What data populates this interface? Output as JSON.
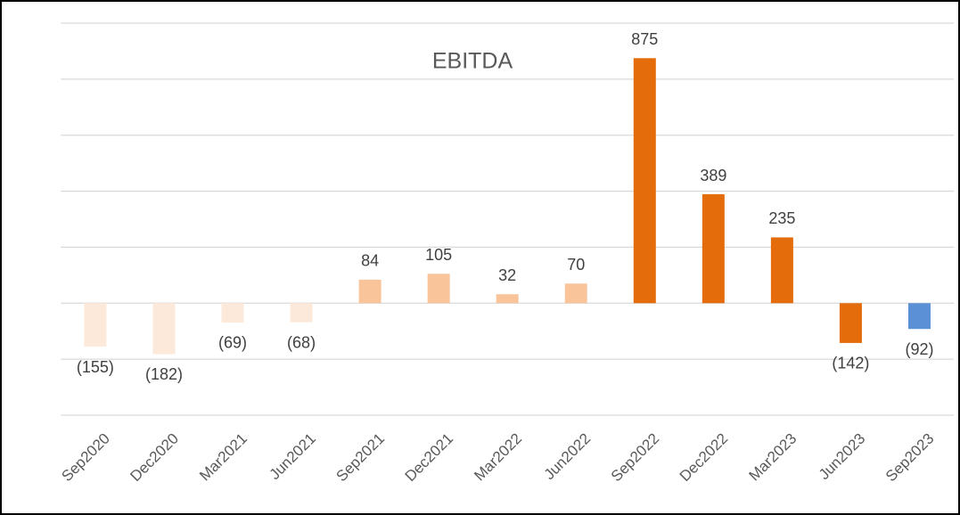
{
  "chart_data": {
    "type": "bar",
    "title": "EBITDA",
    "categories": [
      "Sep2020",
      "Dec2020",
      "Mar2021",
      "Jun2021",
      "Sep2021",
      "Dec2021",
      "Mar2022",
      "Jun2022",
      "Sep2022",
      "Dec2022",
      "Mar2023",
      "Jun2023",
      "Sep2023"
    ],
    "values": [
      -155,
      -182,
      -69,
      -68,
      84,
      105,
      32,
      70,
      875,
      389,
      235,
      -142,
      -92
    ],
    "value_labels": [
      "(155)",
      "(182)",
      "(69)",
      "(68)",
      "84",
      "105",
      "32",
      "70",
      "875",
      "389",
      "235",
      "(142)",
      "(92)"
    ],
    "colors": [
      "#fde9d9",
      "#fde9d9",
      "#fde9d9",
      "#fde9d9",
      "#f9c49a",
      "#f9c49a",
      "#f9c49a",
      "#f9c49a",
      "#e46c0a",
      "#e46c0a",
      "#e46c0a",
      "#e46c0a",
      "#5b8fd6"
    ],
    "ylim": [
      -400,
      1000
    ],
    "yticks": [
      -400,
      -200,
      0,
      200,
      400,
      600,
      800,
      1000
    ],
    "grid": true
  }
}
